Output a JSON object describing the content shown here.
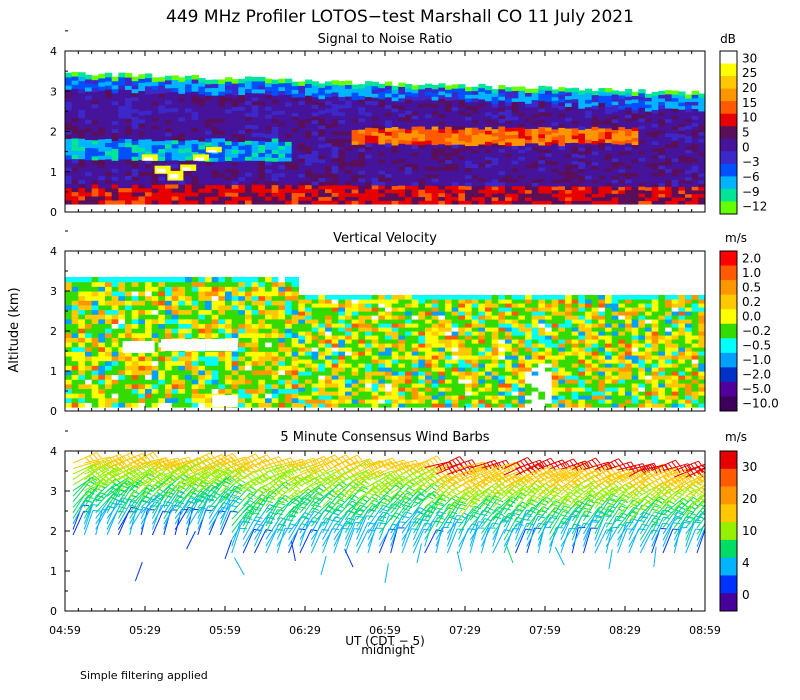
{
  "title": "449 MHz Profiler LOTOS−test Marshall CO 11 July 2021",
  "ylabel": "Altitude (km)",
  "xlabel": "UT  (CDT − 5)",
  "midnight_label": "midnight",
  "footnote": "Simple filtering applied",
  "x_ticks": [
    "04:59",
    "05:29",
    "05:59",
    "06:29",
    "06:59",
    "07:29",
    "07:59",
    "08:29",
    "08:59"
  ],
  "y_ticks": [
    "0",
    "1",
    "2",
    "3",
    "4"
  ],
  "chart_data": [
    {
      "type": "heatmap",
      "title": "Signal to Noise Ratio",
      "units": "dB",
      "xlabel": "UT (CDT - 5)",
      "ylabel": "Altitude (km)",
      "xlim": [
        "04:59",
        "08:59"
      ],
      "ylim": [
        0,
        4
      ],
      "colorbar": {
        "labels": [
          "30",
          "25",
          "20",
          "15",
          "10",
          "5",
          "0",
          "−3",
          "−6",
          "−9",
          "−12"
        ],
        "colors": [
          "#ffffff",
          "#ffff00",
          "#ffc800",
          "#ff9600",
          "#ff5a00",
          "#e60000",
          "#5a0f5a",
          "#46149b",
          "#3c28c8",
          "#0050ff",
          "#00b4ff",
          "#00e696",
          "#64ff00"
        ]
      }
    },
    {
      "type": "heatmap",
      "title": "Vertical Velocity",
      "units": "m/s",
      "xlabel": "UT (CDT - 5)",
      "ylabel": "Altitude (km)",
      "xlim": [
        "04:59",
        "08:59"
      ],
      "ylim": [
        0,
        4
      ],
      "colorbar": {
        "labels": [
          "2.0",
          "1.0",
          "0.5",
          "0.2",
          "0.0",
          "−0.2",
          "−0.5",
          "−1.0",
          "−2.0",
          "−5.0",
          "−10.0"
        ],
        "colors": [
          "#ff0000",
          "#ff5a00",
          "#ff9600",
          "#ffc800",
          "#ffff00",
          "#32dc00",
          "#00ffff",
          "#00a0ff",
          "#0032c8",
          "#50009b",
          "#3c005a"
        ]
      }
    },
    {
      "type": "wind_barbs",
      "title": "5 Minute Consensus Wind Barbs",
      "units": "m/s",
      "xlabel": "UT (CDT - 5)",
      "ylabel": "Altitude (km)",
      "xlim": [
        "04:59",
        "08:59"
      ],
      "ylim": [
        0,
        4
      ],
      "colorbar": {
        "labels": [
          "30",
          "20",
          "10",
          "4",
          "0"
        ],
        "colors": [
          "#e60000",
          "#ff5a00",
          "#ff9600",
          "#ffc800",
          "#96f000",
          "#00dc64",
          "#00b4ff",
          "#0032ff",
          "#46009b"
        ]
      }
    }
  ]
}
